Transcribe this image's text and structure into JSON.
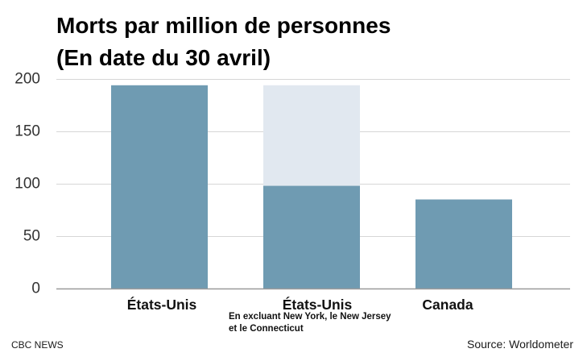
{
  "chart_data": {
    "type": "bar",
    "title": "Morts par million de personnes",
    "subtitle": "(En date du 30 avril)",
    "categories": [
      "États-Unis",
      "États-Unis",
      "Canada"
    ],
    "values": [
      194,
      98,
      85
    ],
    "reference_values": [
      null,
      194,
      null
    ],
    "ylim": [
      0,
      200
    ],
    "yticks": [
      0,
      50,
      100,
      150,
      200
    ],
    "grid": true,
    "annotations": [
      {
        "category_index": 1,
        "lines": [
          "En excluant New York, le New Jersey",
          "et le Connecticut"
        ]
      }
    ],
    "colors": {
      "bar": "#6f9bb2",
      "reference_bar": "#e1e8f0",
      "grid": "#d6d6d6",
      "axis": "#9a9a9a"
    }
  },
  "footer": {
    "brand": "CBC NEWS",
    "source": "Source: Worldometer"
  }
}
